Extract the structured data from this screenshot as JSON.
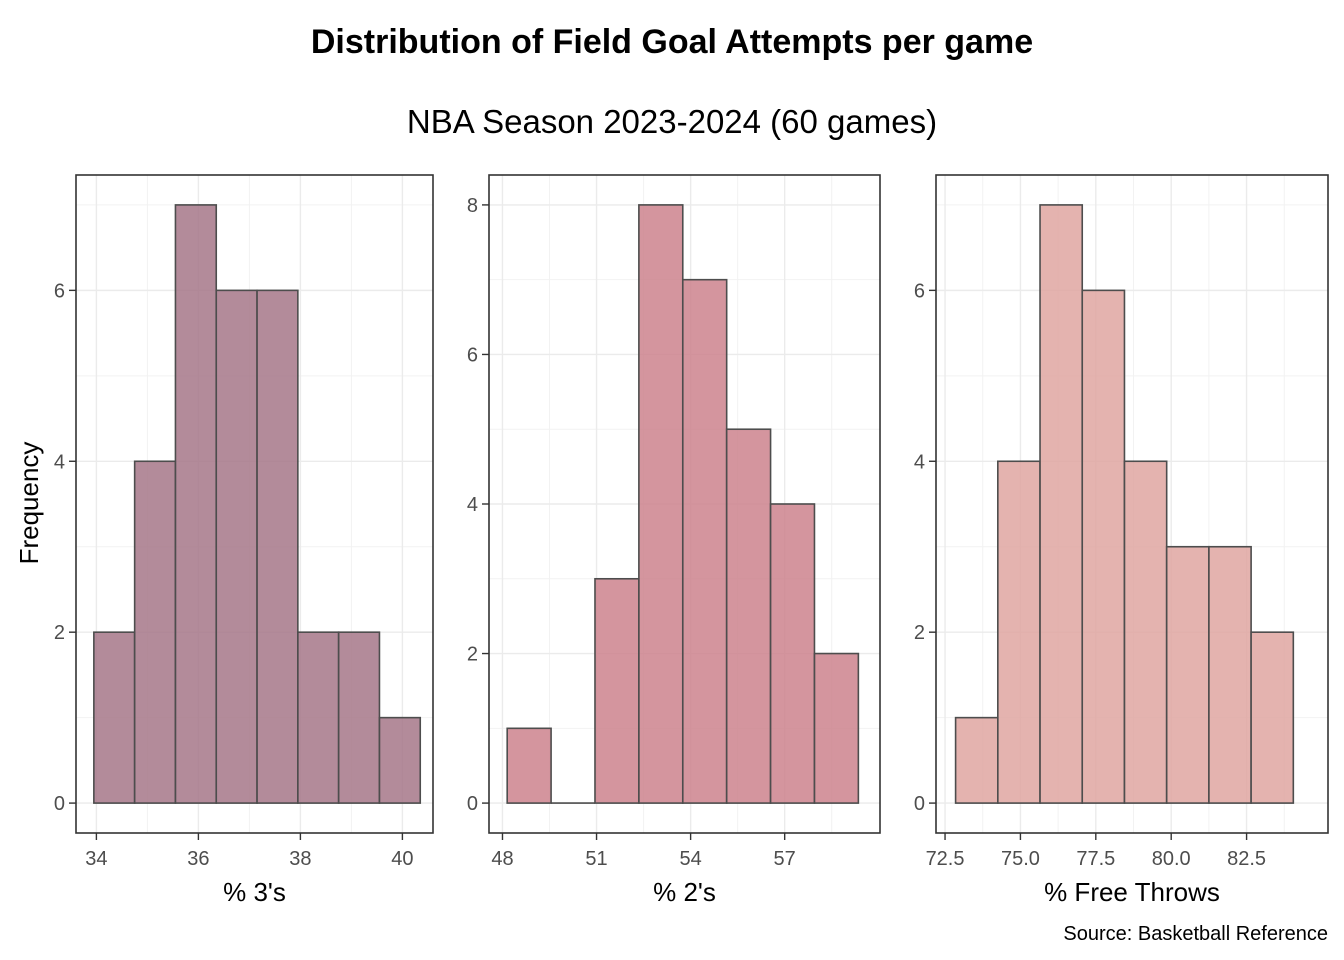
{
  "title": "Distribution of Field Goal Attempts per game",
  "subtitle": "NBA Season 2023-2024 (60 games)",
  "ylabel": "Frequency",
  "caption": "Source: Basketball Reference",
  "chart_data": [
    {
      "type": "bar",
      "xlabel": "% 3's",
      "ylabel": "Frequency",
      "color": "#a67788",
      "border_color": "#4d4d4d",
      "xlim": [
        33.6,
        40.6
      ],
      "ylim": [
        -0.35,
        7.35
      ],
      "x_ticks": [
        34,
        36,
        38,
        40
      ],
      "x_tick_labels": [
        "34",
        "36",
        "38",
        "40"
      ],
      "y_ticks": [
        0,
        2,
        4,
        6
      ],
      "y_tick_labels": [
        "0",
        "2",
        "4",
        "6"
      ],
      "bins": [
        {
          "x0": 33.95,
          "x1": 34.75,
          "count": 2
        },
        {
          "x0": 34.75,
          "x1": 35.55,
          "count": 4
        },
        {
          "x0": 35.55,
          "x1": 36.35,
          "count": 7
        },
        {
          "x0": 36.35,
          "x1": 37.15,
          "count": 6
        },
        {
          "x0": 37.15,
          "x1": 37.95,
          "count": 6
        },
        {
          "x0": 37.95,
          "x1": 38.75,
          "count": 2
        },
        {
          "x0": 38.75,
          "x1": 39.55,
          "count": 2
        },
        {
          "x0": 39.55,
          "x1": 40.35,
          "count": 1
        }
      ],
      "grid": true
    },
    {
      "type": "bar",
      "xlabel": "% 2's",
      "ylabel": "Frequency",
      "color": "#cd838d",
      "border_color": "#4d4d4d",
      "xlim": [
        47.57,
        60.04
      ],
      "ylim": [
        -0.4,
        8.4
      ],
      "x_ticks": [
        48,
        51,
        54,
        57
      ],
      "x_tick_labels": [
        "48",
        "51",
        "54",
        "57"
      ],
      "y_ticks": [
        0,
        2,
        4,
        6,
        8
      ],
      "y_tick_labels": [
        "0",
        "2",
        "4",
        "6",
        "8"
      ],
      "bins": [
        {
          "x0": 48.15,
          "x1": 49.55,
          "count": 1
        },
        {
          "x0": 49.55,
          "x1": 50.95,
          "count": 0
        },
        {
          "x0": 50.95,
          "x1": 52.35,
          "count": 3
        },
        {
          "x0": 52.35,
          "x1": 53.75,
          "count": 8
        },
        {
          "x0": 53.75,
          "x1": 55.15,
          "count": 7
        },
        {
          "x0": 55.15,
          "x1": 56.55,
          "count": 5
        },
        {
          "x0": 56.55,
          "x1": 57.95,
          "count": 4
        },
        {
          "x0": 57.95,
          "x1": 59.35,
          "count": 2
        }
      ],
      "grid": true
    },
    {
      "type": "bar",
      "xlabel": "% Free Throws",
      "ylabel": "Frequency",
      "color": "#dfa6a1",
      "border_color": "#4d4d4d",
      "xlim": [
        72.2,
        85.2
      ],
      "ylim": [
        -0.35,
        7.35
      ],
      "x_ticks": [
        72.5,
        75,
        77.5,
        80,
        82.5
      ],
      "x_tick_labels": [
        "72.5",
        "75.0",
        "77.5",
        "80.0",
        "82.5"
      ],
      "y_ticks": [
        0,
        2,
        4,
        6
      ],
      "y_tick_labels": [
        "0",
        "2",
        "4",
        "6"
      ],
      "bins": [
        {
          "x0": 72.85,
          "x1": 74.25,
          "count": 1
        },
        {
          "x0": 74.25,
          "x1": 75.65,
          "count": 4
        },
        {
          "x0": 75.65,
          "x1": 77.05,
          "count": 7
        },
        {
          "x0": 77.05,
          "x1": 78.45,
          "count": 6
        },
        {
          "x0": 78.45,
          "x1": 79.85,
          "count": 4
        },
        {
          "x0": 79.85,
          "x1": 81.25,
          "count": 3
        },
        {
          "x0": 81.25,
          "x1": 82.65,
          "count": 3
        },
        {
          "x0": 82.65,
          "x1": 84.05,
          "count": 2
        }
      ],
      "grid": true
    }
  ]
}
